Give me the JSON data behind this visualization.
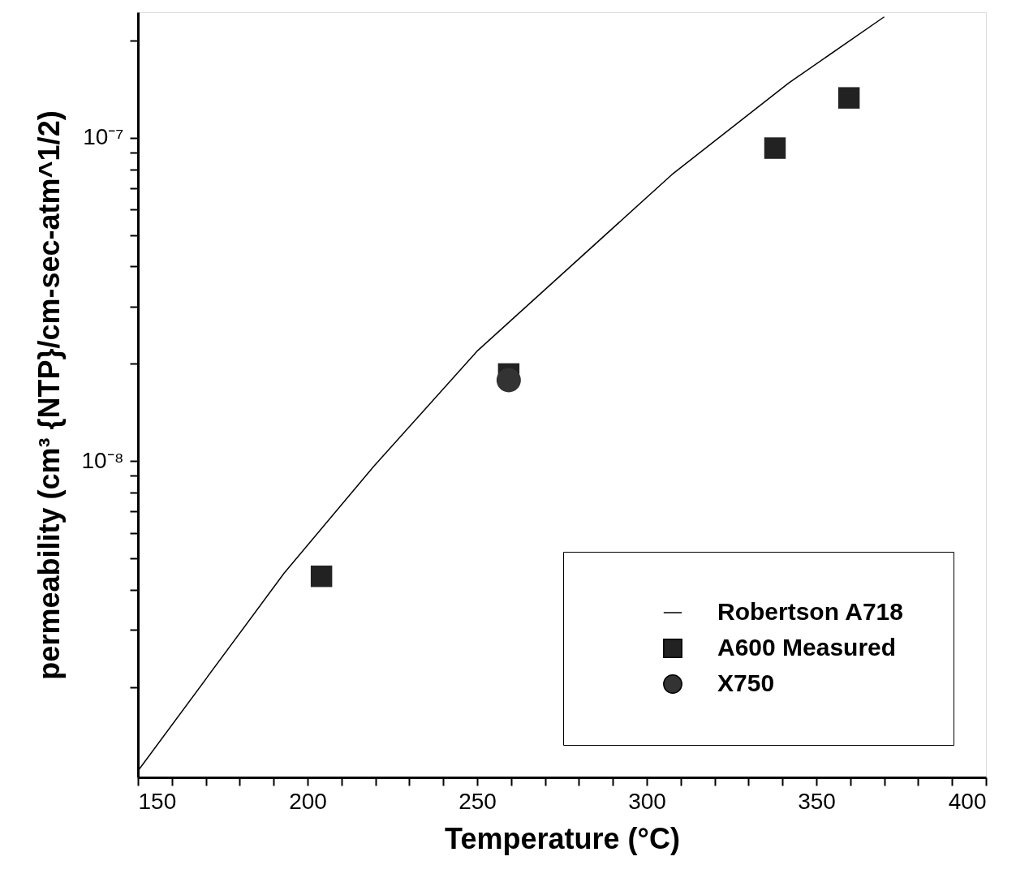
{
  "chart_data": {
    "type": "scatter",
    "xlabel": "Temperature (°C)",
    "ylabel": "permeability (cm³ {NTP}/cm-sec-atm^1/2)",
    "log": "y",
    "grid": false,
    "legend": "bottom right",
    "xlim": [
      150,
      400
    ],
    "xticks": [
      150,
      {
        "value": 160,
        "label": null
      },
      {
        "value": 170,
        "label": null
      },
      {
        "value": 180,
        "label": null
      },
      {
        "value": 190,
        "label": null
      },
      200,
      {
        "value": 210,
        "label": null
      },
      {
        "value": 220,
        "label": null
      },
      {
        "value": 230,
        "label": null
      },
      {
        "value": 240,
        "label": null
      },
      250,
      {
        "value": 260,
        "label": null
      },
      {
        "value": 270,
        "label": null
      },
      {
        "value": 280,
        "label": null
      },
      {
        "value": 290,
        "label": null
      },
      300,
      {
        "value": 310,
        "label": null
      },
      {
        "value": 320,
        "label": null
      },
      {
        "value": 330,
        "label": null
      },
      {
        "value": 340,
        "label": null
      },
      350,
      {
        "value": 360,
        "label": null
      },
      {
        "value": 370,
        "label": null
      },
      {
        "value": 380,
        "label": null
      },
      {
        "value": 390,
        "label": null
      },
      400
    ],
    "ylim": [
      1.05e-09,
      2.45e-07
    ],
    "yticks": [
      {
        "value": 2e-09,
        "label": null
      },
      {
        "value": 3e-09,
        "label": null
      },
      {
        "value": 4e-09,
        "label": null
      },
      {
        "value": 5e-09,
        "label": null
      },
      {
        "value": 6e-09,
        "label": null
      },
      {
        "value": 7e-09,
        "label": null
      },
      {
        "value": 8e-09,
        "label": null
      },
      {
        "value": 9e-09,
        "label": null
      },
      {
        "value": 1e-08,
        "label": "10⁻⁸"
      },
      {
        "value": 2e-08,
        "label": null
      },
      {
        "value": 3e-08,
        "label": null
      },
      {
        "value": 4e-08,
        "label": null
      },
      {
        "value": 5e-08,
        "label": null
      },
      {
        "value": 6e-08,
        "label": null
      },
      {
        "value": 7e-08,
        "label": null
      },
      {
        "value": 8e-08,
        "label": null
      },
      {
        "value": 9e-08,
        "label": null
      },
      {
        "value": 1e-07,
        "label": "10⁻⁷"
      },
      {
        "value": 2e-07,
        "label": null
      }
    ],
    "series": [
      {
        "name": "Robertson A718",
        "type": "line",
        "color": "#000000",
        "marker": "none",
        "line_style": "solid",
        "x": [
          150,
          193.1,
          219.4,
          250.2,
          307.4,
          341.9,
          370
        ],
        "values": [
          1.1e-09,
          4.5e-09,
          9.6e-09,
          2.2e-08,
          7.7e-08,
          1.48e-07,
          2.37e-07
        ]
      },
      {
        "name": "A600 Measured",
        "color": "#222222",
        "marker": "square",
        "x": [
          204.1,
          259.3,
          337.8,
          359.6
        ],
        "values": [
          4.4e-09,
          1.86e-08,
          9.3e-08,
          1.33e-07
        ]
      },
      {
        "name": "X750",
        "color": "#333333",
        "marker": "circle",
        "x": [
          259.3
        ],
        "values": [
          1.78e-08
        ]
      }
    ]
  }
}
